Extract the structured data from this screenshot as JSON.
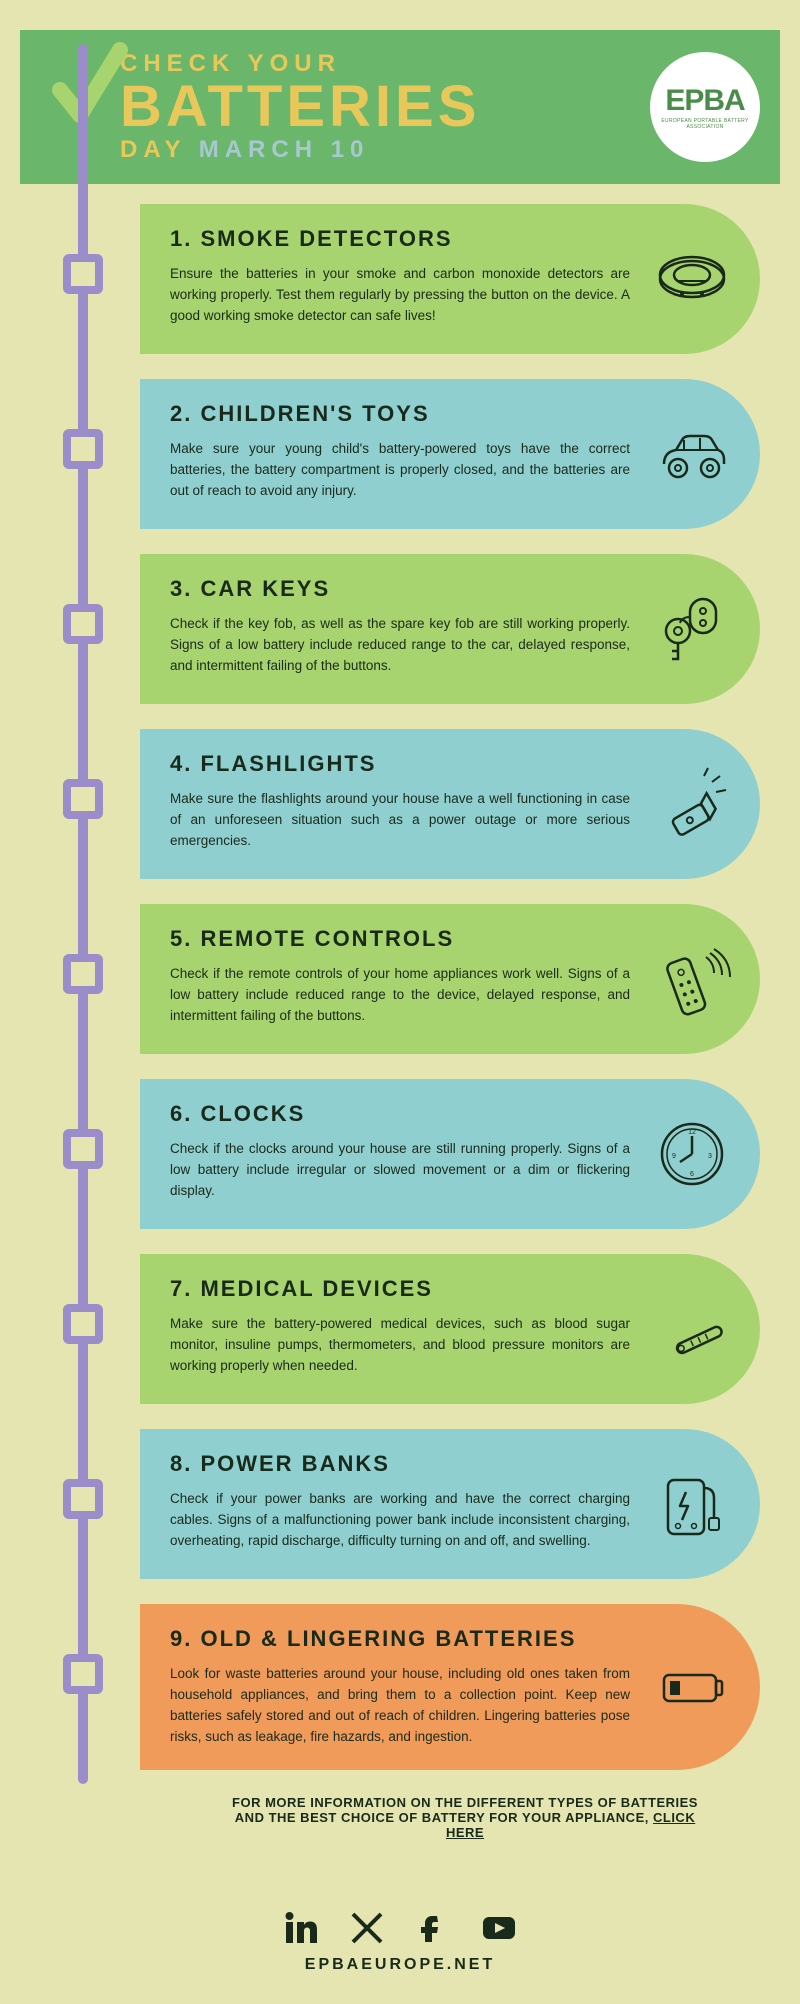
{
  "header": {
    "line1": "CHECK YOUR",
    "line2": "BATTERIES",
    "line3a": "DAY ",
    "line3b": "MARCH 10",
    "logo_text": "EPBA",
    "logo_sub": "EUROPEAN PORTABLE BATTERY ASSOCIATION"
  },
  "colors": {
    "green": "#a8d46f",
    "teal": "#8fcfd0",
    "orange": "#f09b5a",
    "purple": "#9b8dc9",
    "bg": "#e4e5b0"
  },
  "items": [
    {
      "title": "1. SMOKE DETECTORS",
      "body": "Ensure the batteries in your smoke and carbon monoxide detectors are working properly. Test them regularly by pressing the button on the device. A good working smoke detector can safe lives!",
      "color": "green",
      "icon": "smoke-detector"
    },
    {
      "title": "2. CHILDREN'S TOYS",
      "body": "Make sure your young child's battery-powered toys have the correct batteries, the battery compartment is properly closed, and the batteries are out of reach to avoid any injury.",
      "color": "teal",
      "icon": "toy-car"
    },
    {
      "title": "3. CAR KEYS",
      "body": "Check if the key fob, as well as the spare key fob are still working properly. Signs of a low battery include reduced range to the car, delayed response, and intermittent failing of the buttons.",
      "color": "green",
      "icon": "car-keys"
    },
    {
      "title": "4. FLASHLIGHTS",
      "body": "Make sure the flashlights around your house have a well functioning in case of an unforeseen situation such as a power outage or more serious emergencies.",
      "color": "teal",
      "icon": "flashlight"
    },
    {
      "title": "5. REMOTE CONTROLS",
      "body": "Check if the remote controls of your home appliances work well. Signs of a low battery include reduced range to the device, delayed response, and intermittent failing of the buttons.",
      "color": "green",
      "icon": "remote"
    },
    {
      "title": "6. CLOCKS",
      "body": "Check if the clocks around your house are still running properly. Signs of a low battery include irregular or slowed movement or a dim or flickering display.",
      "color": "teal",
      "icon": "clock"
    },
    {
      "title": "7. MEDICAL DEVICES",
      "body": "Make sure the battery-powered medical devices, such as blood sugar monitor, insuline pumps, thermometers, and blood pressure monitors are working properly when needed.",
      "color": "green",
      "icon": "thermometer"
    },
    {
      "title": "8. POWER BANKS",
      "body": "Check if your power banks are working and have the correct charging cables. Signs of a malfunctioning power bank include inconsistent charging, overheating, rapid discharge, difficulty turning on and off, and swelling.",
      "color": "teal",
      "icon": "powerbank"
    },
    {
      "title": "9. OLD & LINGERING BATTERIES",
      "body": "Look for waste batteries around your house, including old ones taken from household appliances, and bring them to a collection point. Keep new batteries safely stored and out of reach of children. Lingering batteries pose risks, such as leakage, fire hazards, and ingestion.",
      "color": "orange",
      "icon": "battery-low"
    }
  ],
  "footer": {
    "info_a": "FOR MORE INFORMATION ON THE DIFFERENT TYPES OF BATTERIES AND THE BEST CHOICE OF BATTERY FOR YOUR APPLIANCE, ",
    "info_link": "CLICK HERE",
    "website": "EPBAEUROPE.NET"
  },
  "timeline_height": 1740
}
